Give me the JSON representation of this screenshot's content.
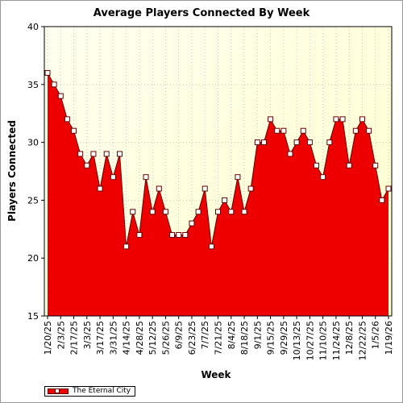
{
  "chart_data": {
    "type": "area",
    "title": "Average Players Connected By Week",
    "xlabel": "Week",
    "ylabel": "Players Connected",
    "ylim": [
      15,
      40
    ],
    "yticks": [
      15,
      20,
      25,
      30,
      35,
      40
    ],
    "grid": true,
    "legend_position": "bottom-left",
    "x": [
      "1/20/25",
      "1/27/25",
      "2/3/25",
      "2/10/25",
      "2/17/25",
      "2/24/25",
      "3/3/25",
      "3/10/25",
      "3/17/25",
      "3/24/25",
      "3/31/25",
      "4/7/25",
      "4/14/25",
      "4/21/25",
      "4/28/25",
      "5/5/25",
      "5/12/25",
      "5/19/25",
      "5/26/25",
      "6/2/25",
      "6/9/25",
      "6/16/25",
      "6/23/25",
      "6/30/25",
      "7/7/25",
      "7/14/25",
      "7/21/25",
      "7/28/25",
      "8/4/25",
      "8/11/25",
      "8/18/25",
      "8/25/25",
      "9/1/25",
      "9/8/25",
      "9/15/25",
      "9/22/25",
      "9/29/25",
      "10/6/25",
      "10/13/25",
      "10/20/25",
      "10/27/25",
      "11/3/25",
      "11/10/25",
      "11/17/25",
      "11/24/25",
      "12/1/25",
      "12/8/25",
      "12/15/25",
      "12/22/25",
      "12/29/25",
      "1/5/26",
      "1/12/26",
      "1/19/26"
    ],
    "xtick_labels": [
      "1/20/25",
      "2/3/25",
      "2/17/25",
      "3/3/25",
      "3/17/25",
      "3/31/25",
      "4/14/25",
      "4/28/25",
      "5/12/25",
      "5/26/25",
      "6/9/25",
      "6/23/25",
      "7/7/25",
      "7/21/25",
      "8/4/25",
      "8/18/25",
      "9/1/25",
      "9/15/25",
      "9/29/25",
      "10/13/25",
      "10/27/25",
      "11/10/25",
      "11/24/25",
      "12/8/25",
      "12/22/25",
      "1/5/26",
      "1/19/26"
    ],
    "series": [
      {
        "name": "The Eternal City",
        "color": "#ee0000",
        "values": [
          36,
          35,
          34,
          32,
          31,
          29,
          28,
          29,
          26,
          29,
          27,
          29,
          21,
          24,
          22,
          27,
          24,
          26,
          24,
          22,
          22,
          22,
          23,
          24,
          26,
          21,
          24,
          25,
          24,
          27,
          24,
          26,
          30,
          30,
          32,
          31,
          31,
          29,
          30,
          31,
          30,
          28,
          27,
          30,
          32,
          32,
          28,
          31,
          32,
          31,
          28,
          25,
          26
        ]
      }
    ]
  },
  "colors": {
    "plot_background": "#ffffdd",
    "grid": "#cccccc",
    "area_fill": "#ee0000",
    "area_edge": "#660000",
    "marker_fill": "#ffffff"
  }
}
